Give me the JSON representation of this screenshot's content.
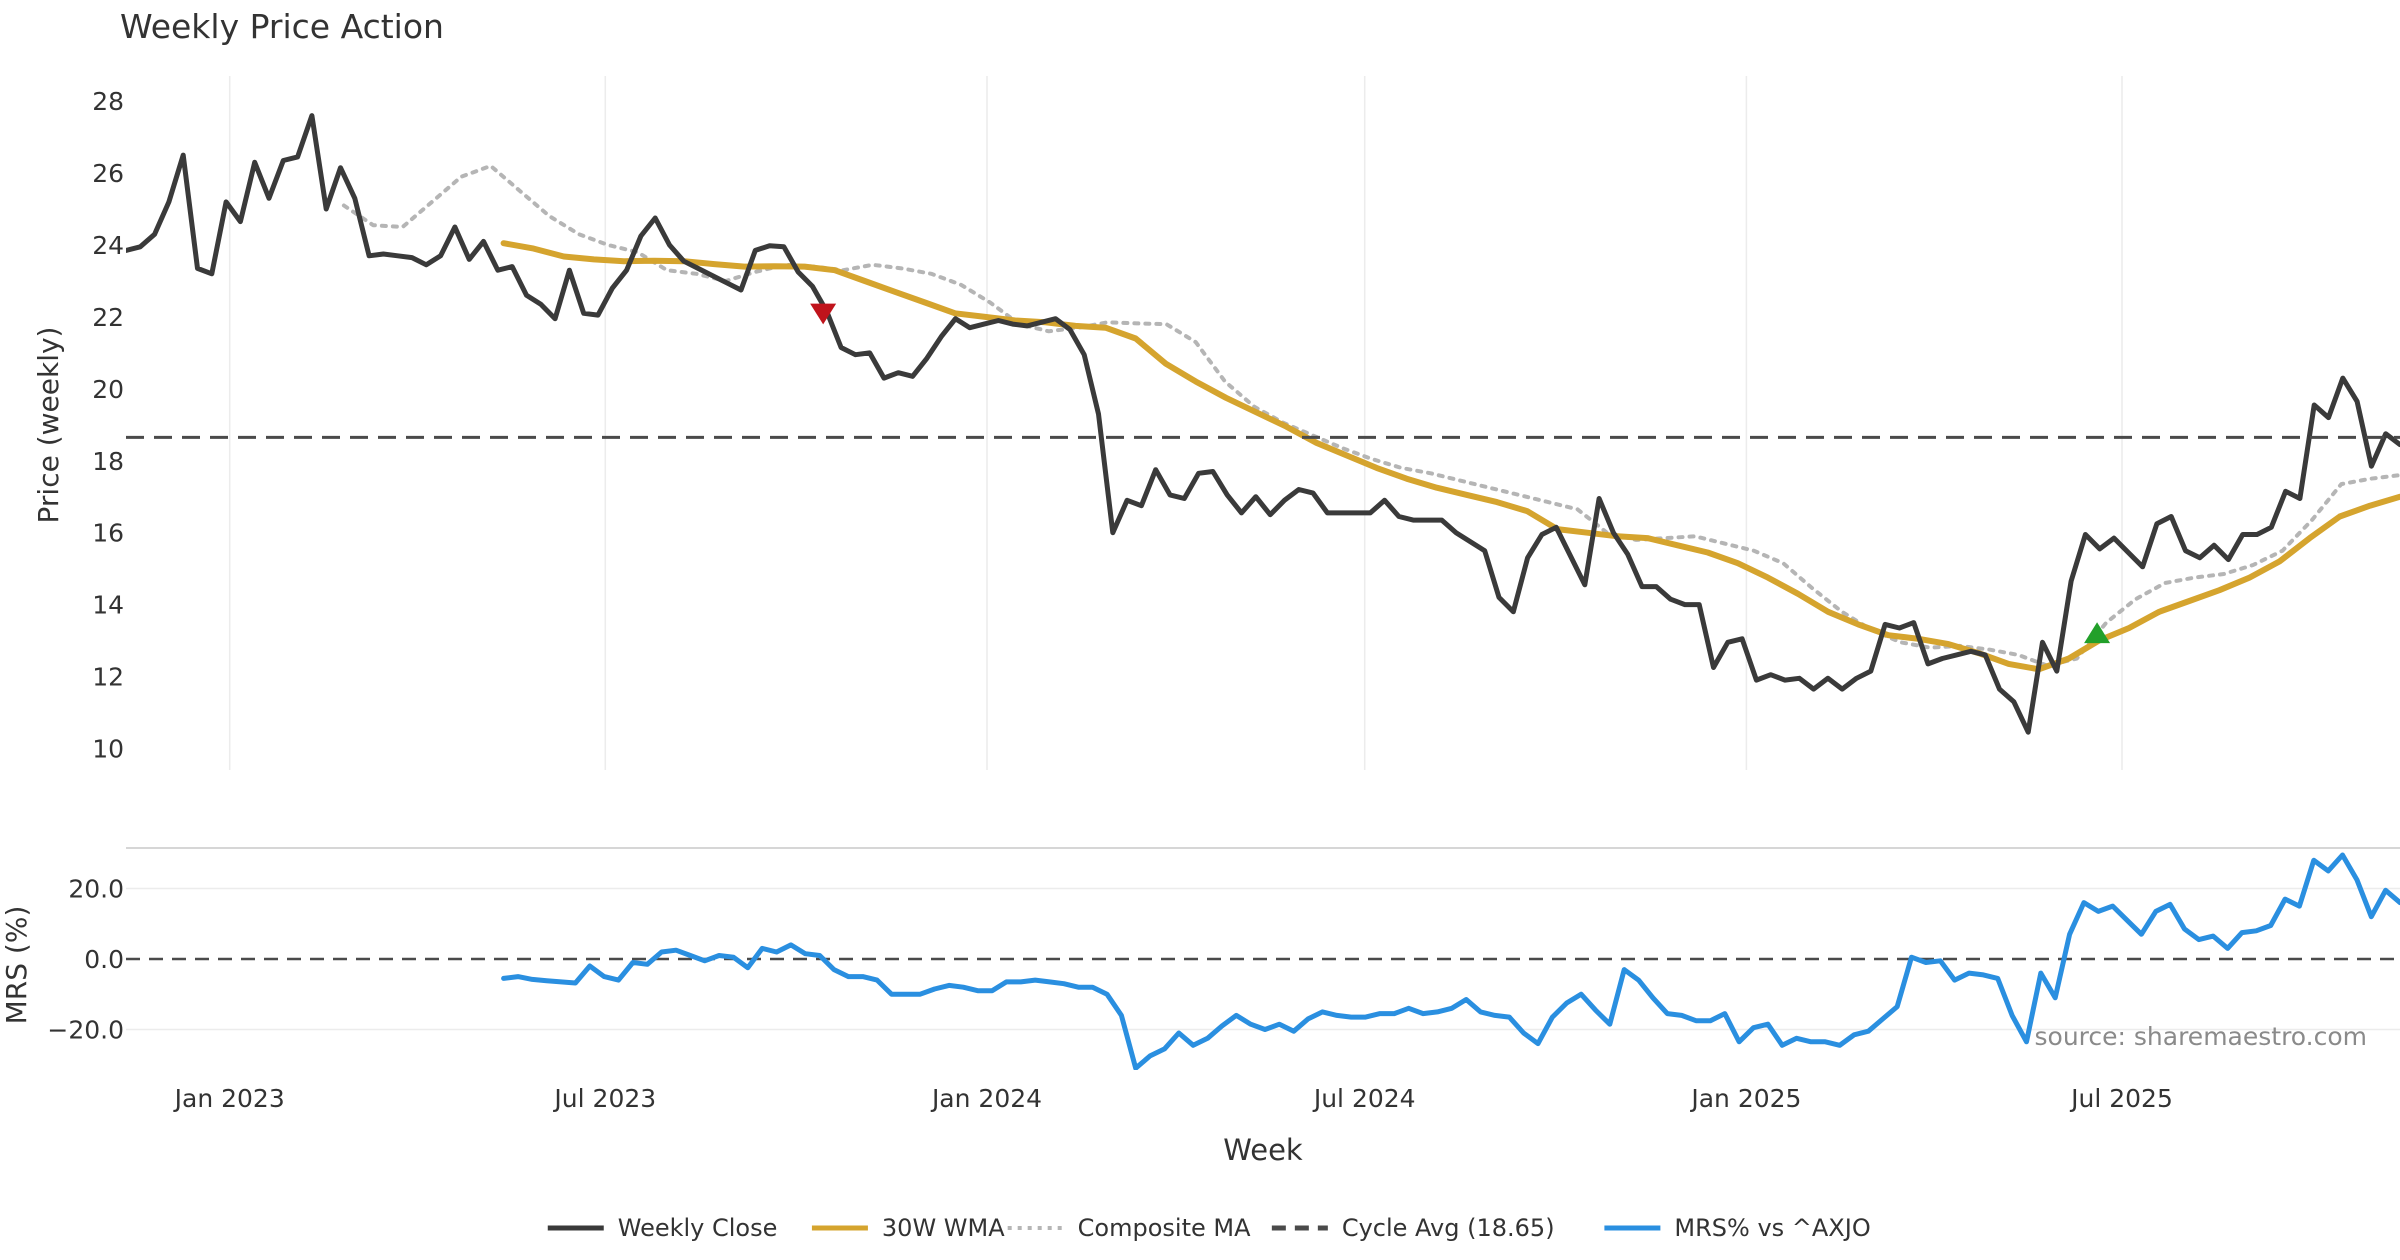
{
  "chart_data": [
    {
      "type": "line",
      "title": "Weekly Price Action",
      "ylabel": "Price (weekly)",
      "ylim": [
        9.4,
        28.7
      ],
      "yticks": [
        10,
        12,
        14,
        16,
        18,
        20,
        22,
        24,
        26,
        28
      ],
      "x_range": [
        "2022-11-12",
        "2025-11-12"
      ],
      "x_gridlines": [
        "2023-01-01",
        "2023-07-01",
        "2024-01-01",
        "2024-07-01",
        "2025-01-01",
        "2025-07-01"
      ],
      "cycle_avg": 18.65,
      "markers": [
        {
          "type": "sell",
          "symbol": "down-triangle",
          "color": "#c0141c",
          "date": "2023-10-14",
          "value": 22.1
        },
        {
          "type": "buy",
          "symbol": "up-triangle",
          "color": "#22a02a",
          "date": "2025-06-19",
          "value": 13.2
        }
      ],
      "series": [
        {
          "name": "Weekly Close",
          "color": "#3a3a3a",
          "start": "2022-11-12",
          "end": "2025-11-12",
          "values": [
            23.85,
            23.95,
            24.3,
            25.2,
            26.5,
            23.35,
            23.2,
            25.2,
            24.65,
            26.3,
            25.3,
            26.35,
            26.45,
            27.6,
            25.0,
            26.15,
            25.3,
            23.7,
            23.75,
            23.7,
            23.65,
            23.45,
            23.7,
            24.5,
            23.6,
            24.1,
            23.3,
            23.4,
            22.6,
            22.35,
            21.95,
            23.3,
            22.1,
            22.05,
            22.8,
            23.3,
            24.25,
            24.75,
            24.0,
            23.55,
            23.35,
            23.15,
            22.95,
            22.75,
            23.85,
            23.98,
            23.95,
            23.25,
            22.85,
            22.15,
            21.15,
            20.95,
            21.0,
            20.3,
            20.45,
            20.35,
            20.85,
            21.45,
            21.95,
            21.7,
            21.8,
            21.9,
            21.8,
            21.75,
            21.85,
            21.95,
            21.65,
            20.95,
            19.3,
            16.0,
            16.9,
            16.75,
            17.75,
            17.05,
            16.95,
            17.65,
            17.7,
            17.05,
            16.55,
            17.0,
            16.5,
            16.9,
            17.2,
            17.1,
            16.55,
            16.55,
            16.55,
            16.55,
            16.9,
            16.45,
            16.35,
            16.35,
            16.35,
            16.0,
            15.75,
            15.5,
            14.2,
            13.8,
            15.3,
            15.95,
            16.15,
            15.35,
            14.55,
            16.95,
            16.0,
            15.4,
            14.5,
            14.5,
            14.15,
            14.0,
            14.0,
            12.25,
            12.95,
            13.05,
            11.9,
            12.05,
            11.9,
            11.95,
            11.65,
            11.95,
            11.65,
            11.95,
            12.15,
            13.45,
            13.35,
            13.5,
            12.35,
            12.5,
            12.6,
            12.7,
            12.6,
            11.65,
            11.3,
            10.45,
            12.95,
            12.15,
            14.65,
            15.95,
            15.55,
            15.85,
            15.45,
            15.05,
            16.25,
            16.45,
            15.5,
            15.3,
            15.65,
            15.25,
            15.95,
            15.95,
            16.15,
            17.15,
            16.95,
            19.55,
            19.2,
            20.3,
            19.65,
            17.85,
            18.75,
            18.45
          ]
        },
        {
          "name": "30W WMA",
          "color": "#d5a42e",
          "start": "2023-05-13",
          "end": "2025-11-12",
          "values": [
            24.05,
            23.9,
            23.68,
            23.6,
            23.55,
            23.56,
            23.55,
            23.47,
            23.4,
            23.41,
            23.4,
            23.3,
            23.0,
            22.7,
            22.4,
            22.1,
            22.0,
            21.9,
            21.85,
            21.75,
            21.7,
            21.4,
            20.7,
            20.2,
            19.75,
            19.35,
            18.95,
            18.5,
            18.15,
            17.8,
            17.5,
            17.25,
            17.05,
            16.85,
            16.6,
            16.1,
            16.0,
            15.9,
            15.85,
            15.65,
            15.45,
            15.15,
            14.75,
            14.3,
            13.8,
            13.45,
            13.15,
            13.05,
            12.9,
            12.65,
            12.35,
            12.2,
            12.5,
            13.0,
            13.35,
            13.8,
            14.1,
            14.4,
            14.75,
            15.2,
            15.85,
            16.45,
            16.75,
            17.0
          ]
        },
        {
          "name": "Composite MA",
          "color": "#b5b5b5",
          "start": "2023-02-25",
          "end": "2025-11-12",
          "values": [
            25.1,
            24.55,
            24.5,
            25.2,
            25.9,
            26.2,
            25.5,
            24.8,
            24.3,
            24.0,
            23.8,
            23.3,
            23.2,
            23.0,
            23.25,
            23.45,
            23.4,
            23.3,
            23.45,
            23.35,
            23.2,
            22.9,
            22.4,
            21.8,
            21.6,
            21.7,
            21.85,
            21.82,
            21.8,
            21.3,
            20.2,
            19.5,
            19.05,
            18.7,
            18.35,
            18.05,
            17.8,
            17.65,
            17.45,
            17.25,
            17.05,
            16.85,
            16.65,
            16.0,
            15.8,
            15.85,
            15.9,
            15.7,
            15.5,
            15.15,
            14.45,
            13.8,
            13.3,
            12.95,
            12.8,
            12.85,
            12.75,
            12.6,
            12.3,
            12.5,
            13.5,
            14.15,
            14.6,
            14.75,
            14.85,
            15.1,
            15.5,
            16.35,
            17.35,
            17.5,
            17.6
          ]
        },
        {
          "name": "Cycle Avg (18.65)",
          "color": "#4a4a4a",
          "constant": 18.65
        }
      ]
    },
    {
      "type": "line",
      "ylabel": "MRS (%)",
      "ylim": [
        -31.5,
        31.5
      ],
      "yticks": [
        -20.0,
        0.0,
        20.0
      ],
      "ytick_labels": [
        "−20.0",
        "0.0",
        "20.0"
      ],
      "xlabel": "Week",
      "x_ticks": [
        {
          "date": "2023-01-01",
          "label": "Jan 2023"
        },
        {
          "date": "2023-07-01",
          "label": "Jul 2023"
        },
        {
          "date": "2024-01-01",
          "label": "Jan 2024"
        },
        {
          "date": "2024-07-01",
          "label": "Jul 2024"
        },
        {
          "date": "2025-01-01",
          "label": "Jan 2025"
        },
        {
          "date": "2025-07-01",
          "label": "Jul 2025"
        }
      ],
      "reference_line": 0.0,
      "series": [
        {
          "name": "MRS% vs ^AXJO",
          "color": "#2a8fe0",
          "start": "2023-05-13",
          "end": "2025-11-12",
          "values": [
            -5.5,
            -5.0,
            -5.8,
            -6.2,
            -6.5,
            -6.8,
            -2.0,
            -5.0,
            -6.0,
            -1.0,
            -1.5,
            2.0,
            2.5,
            1.0,
            -0.5,
            1.0,
            0.5,
            -2.5,
            3.0,
            2.0,
            4.0,
            1.5,
            1.0,
            -3.0,
            -5.0,
            -5.0,
            -6.0,
            -10.0,
            -10.0,
            -10.0,
            -8.5,
            -7.5,
            -8.0,
            -9.0,
            -9.0,
            -6.5,
            -6.5,
            -6.0,
            -6.5,
            -7.0,
            -8.0,
            -8.0,
            -10.0,
            -16.0,
            -31.0,
            -27.5,
            -25.5,
            -21.0,
            -24.5,
            -22.5,
            -19.0,
            -16.0,
            -18.5,
            -20.0,
            -18.5,
            -20.5,
            -17.0,
            -15.0,
            -16.0,
            -16.5,
            -16.5,
            -15.5,
            -15.5,
            -14.0,
            -15.5,
            -15.0,
            -14.0,
            -11.5,
            -15.0,
            -16.0,
            -16.5,
            -21.0,
            -24.0,
            -16.5,
            -12.5,
            -10.0,
            -14.5,
            -18.5,
            -3.0,
            -6.0,
            -11.0,
            -15.5,
            -16.0,
            -17.5,
            -17.5,
            -15.5,
            -23.5,
            -19.5,
            -18.5,
            -24.5,
            -22.5,
            -23.5,
            -23.5,
            -24.5,
            -21.5,
            -20.5,
            -17.0,
            -13.5,
            0.5,
            -1.0,
            -0.5,
            -6.0,
            -4.0,
            -4.5,
            -5.5,
            -16.0,
            -23.5,
            -4.0,
            -11.0,
            7.0,
            16.0,
            13.5,
            15.0,
            11.0,
            7.0,
            13.5,
            15.5,
            8.5,
            5.5,
            6.5,
            3.0,
            7.5,
            8.0,
            9.5,
            17.0,
            15.0,
            28.0,
            25.0,
            29.5,
            22.5,
            12.0,
            19.5,
            16.0
          ]
        }
      ]
    }
  ],
  "source_text": "source: sharemaestro.com",
  "legend": [
    {
      "label": "Weekly Close",
      "color": "#3a3a3a",
      "style": "solid"
    },
    {
      "label": "30W WMA",
      "color": "#d5a42e",
      "style": "solid"
    },
    {
      "label": "Composite MA",
      "color": "#b5b5b5",
      "style": "dotted"
    },
    {
      "label": "Cycle Avg (18.65)",
      "color": "#4a4a4a",
      "style": "dashed"
    },
    {
      "label": "MRS% vs ^AXJO",
      "color": "#2a8fe0",
      "style": "solid"
    }
  ]
}
